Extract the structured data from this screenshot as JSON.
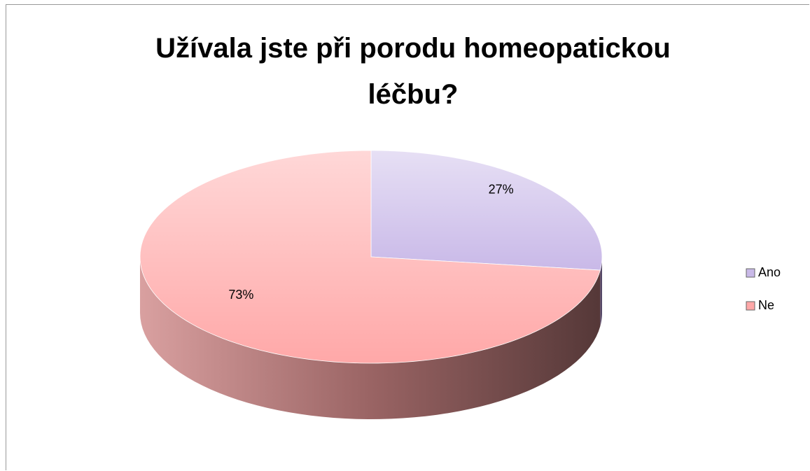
{
  "chart_data": {
    "type": "pie",
    "title": "Užívala jste při porodu homeopatickou léčbu?",
    "categories": [
      "Ano",
      "Ne"
    ],
    "values": [
      27,
      73
    ],
    "value_labels": [
      "27%",
      "73%"
    ],
    "colors": [
      "#c9b9e8",
      "#ffa8a8"
    ],
    "legend": "right"
  }
}
